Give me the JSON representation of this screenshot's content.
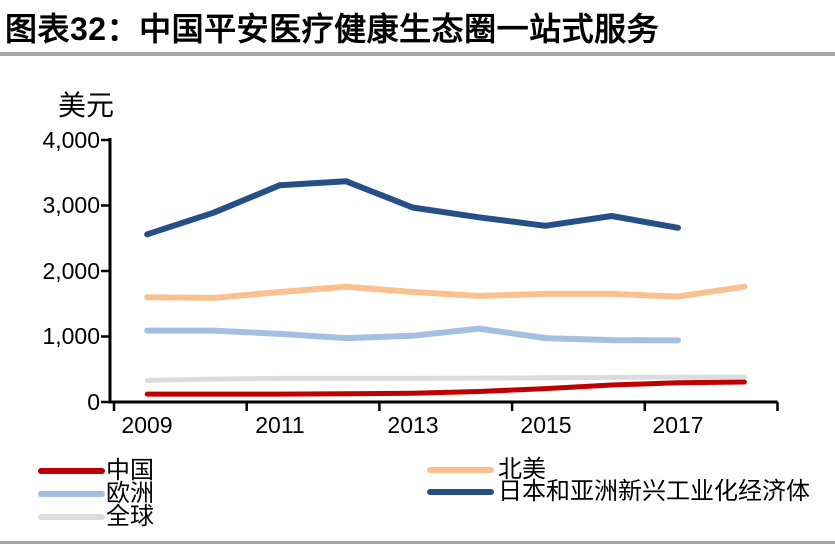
{
  "header": {
    "title": "图表32：中国平安医疗健康生态圈一站式服务"
  },
  "chart": {
    "unit_label": "美元",
    "y_tick_labels": [
      "4,000",
      "3,000",
      "2,000",
      "1,000",
      "0"
    ],
    "x_tick_labels": [
      "2009",
      "2011",
      "2013",
      "2015",
      "2017"
    ]
  },
  "legend": {
    "items": [
      {
        "label": "中国",
        "color": "#c00000"
      },
      {
        "label": "欧洲",
        "color": "#a3c0e3"
      },
      {
        "label": "全球",
        "color": "#dcdcdc"
      },
      {
        "label": "北美",
        "color": "#fac090"
      },
      {
        "label": "日本和亚洲新兴工业化经济体",
        "color": "#264f87"
      }
    ]
  },
  "chart_data": {
    "type": "line",
    "title": "图表32：中国平安医疗健康生态圈一站式服务",
    "xlabel": "",
    "ylabel": "美元",
    "x": [
      2009,
      2010,
      2011,
      2012,
      2013,
      2014,
      2015,
      2016,
      2017,
      2018
    ],
    "ylim": [
      0,
      4000
    ],
    "yticks": [
      0,
      1000,
      2000,
      3000,
      4000
    ],
    "grid": false,
    "legend_position": "bottom",
    "series": [
      {
        "name": "中国",
        "color": "#c00000",
        "width": 5,
        "values": [
          120,
          120,
          120,
          125,
          135,
          160,
          205,
          260,
          295,
          305
        ]
      },
      {
        "name": "北美",
        "color": "#fac090",
        "width": 6,
        "values": [
          1600,
          1590,
          1680,
          1760,
          1680,
          1620,
          1650,
          1650,
          1610,
          1760
        ]
      },
      {
        "name": "欧洲",
        "color": "#a3c0e3",
        "width": 6,
        "values": [
          1090,
          1090,
          1040,
          975,
          1010,
          1120,
          975,
          945,
          940,
          null
        ]
      },
      {
        "name": "全球",
        "color": "#dcdcdc",
        "width": 5,
        "values": [
          330,
          350,
          360,
          360,
          360,
          365,
          370,
          375,
          380,
          380
        ]
      },
      {
        "name": "日本和亚洲新兴工业化经济体",
        "color": "#264f87",
        "width": 6,
        "values": [
          2560,
          2890,
          3310,
          3370,
          2970,
          2820,
          2690,
          2840,
          2660,
          null
        ]
      }
    ]
  }
}
